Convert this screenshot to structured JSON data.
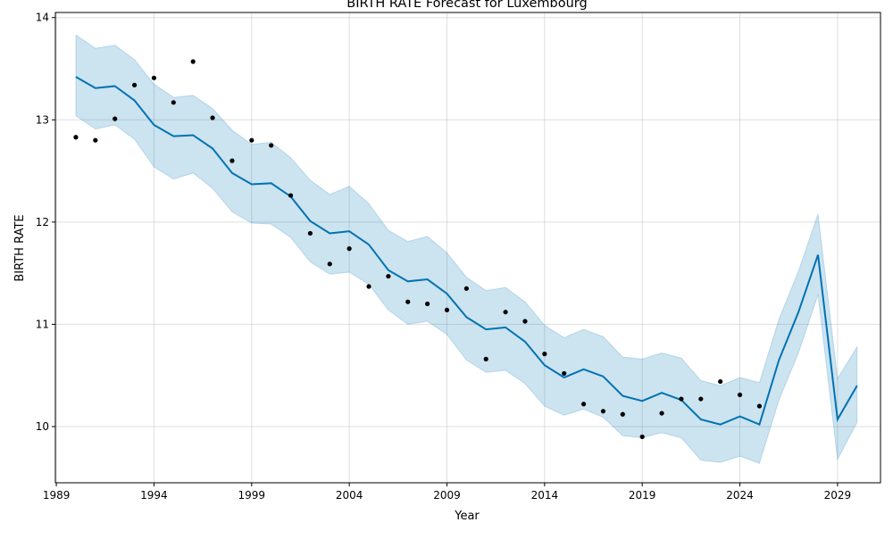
{
  "chart_data": {
    "type": "line",
    "title": "BIRTH RATE Forecast for Luxembourg",
    "xlabel": "Year",
    "ylabel": "BIRTH RATE",
    "xlim": [
      1988.95,
      2031.2
    ],
    "ylim": [
      9.45,
      14.05
    ],
    "grid": true,
    "x_ticks": [
      "1989",
      "1994",
      "1999",
      "2004",
      "2009",
      "2014",
      "2019",
      "2024",
      "2029"
    ],
    "y_ticks": [
      "10",
      "11",
      "12",
      "13",
      "14"
    ],
    "colors": {
      "forecast": "#0072B2",
      "interval": "#0072B2",
      "observed": "#000000"
    },
    "series": [
      {
        "role": "observed",
        "x": [
          1990,
          1991,
          1992,
          1993,
          1994,
          1995,
          1996,
          1997,
          1998,
          1999,
          2000,
          2001,
          2002,
          2003,
          2004,
          2005,
          2006,
          2007,
          2008,
          2009,
          2010,
          2011,
          2012,
          2013,
          2014,
          2015,
          2016,
          2017,
          2018,
          2019,
          2020,
          2021,
          2022,
          2023,
          2024,
          2025
        ],
        "values": [
          12.83,
          12.8,
          13.01,
          13.34,
          13.41,
          13.17,
          13.57,
          13.02,
          12.6,
          12.8,
          12.75,
          12.26,
          11.89,
          11.59,
          11.74,
          11.37,
          11.47,
          11.22,
          11.2,
          11.14,
          11.35,
          10.66,
          11.12,
          11.03,
          10.71,
          10.52,
          10.22,
          10.15,
          10.12,
          9.9,
          10.13,
          10.27,
          10.27,
          10.44,
          10.31,
          10.2
        ]
      },
      {
        "role": "forecast",
        "x": [
          1990,
          1991,
          1992,
          1993,
          1994,
          1995,
          1996,
          1997,
          1998,
          1999,
          2000,
          2001,
          2002,
          2003,
          2004,
          2005,
          2006,
          2007,
          2008,
          2009,
          2010,
          2011,
          2012,
          2013,
          2014,
          2015,
          2016,
          2017,
          2018,
          2019,
          2020,
          2021,
          2022,
          2023,
          2024,
          2025,
          2026,
          2027,
          2028,
          2029,
          2030
        ],
        "values": [
          13.42,
          13.31,
          13.33,
          13.19,
          12.95,
          12.84,
          12.85,
          12.72,
          12.48,
          12.37,
          12.38,
          12.25,
          12.01,
          11.89,
          11.91,
          11.78,
          11.53,
          11.42,
          11.44,
          11.3,
          11.07,
          10.95,
          10.97,
          10.83,
          10.6,
          10.48,
          10.56,
          10.49,
          10.3,
          10.25,
          10.33,
          10.26,
          10.07,
          10.02,
          10.1,
          10.02,
          10.65,
          11.12,
          11.68,
          10.07,
          10.4
        ],
        "lower": [
          13.04,
          12.91,
          12.95,
          12.81,
          12.54,
          12.42,
          12.48,
          12.33,
          12.1,
          11.99,
          11.98,
          11.85,
          11.61,
          11.49,
          11.51,
          11.39,
          11.14,
          11.0,
          11.03,
          10.9,
          10.65,
          10.53,
          10.55,
          10.42,
          10.2,
          10.11,
          10.17,
          10.09,
          9.91,
          9.89,
          9.94,
          9.89,
          9.67,
          9.65,
          9.71,
          9.64,
          10.26,
          10.72,
          11.29,
          9.68,
          10.04
        ],
        "upper": [
          13.83,
          13.7,
          13.73,
          13.59,
          13.35,
          13.22,
          13.24,
          13.11,
          12.9,
          12.76,
          12.78,
          12.63,
          12.41,
          12.27,
          12.35,
          12.18,
          11.92,
          11.81,
          11.86,
          11.7,
          11.46,
          11.33,
          11.36,
          11.22,
          10.99,
          10.87,
          10.95,
          10.88,
          10.68,
          10.66,
          10.72,
          10.67,
          10.45,
          10.4,
          10.48,
          10.43,
          11.05,
          11.52,
          12.08,
          10.47,
          10.78
        ]
      }
    ]
  }
}
